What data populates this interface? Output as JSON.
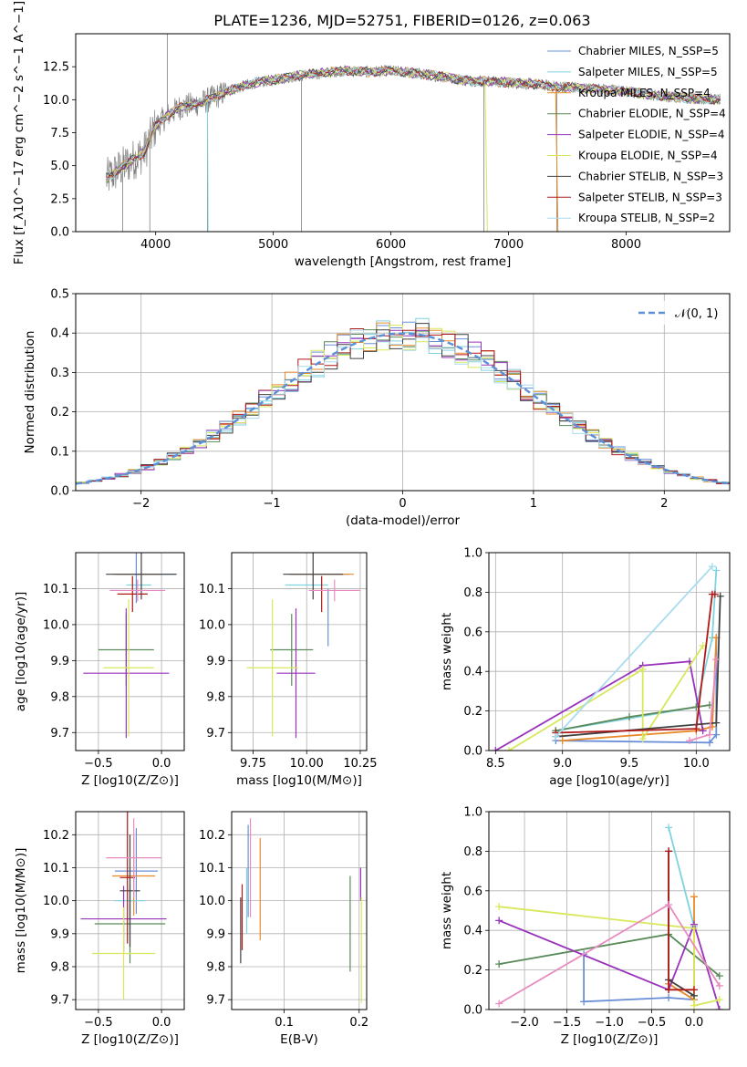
{
  "title": "PLATE=1236, MJD=52751, FIBERID=0126, z=0.063",
  "colors": {
    "Chabrier MILES": "#6a8fd8",
    "Salpeter MILES": "#7fd3e0",
    "Kroupa MILES": "#e88a2a",
    "Chabrier ELODIE": "#5a8a5a",
    "Salpeter ELODIE": "#9933bb",
    "Kroupa ELODIE": "#d8e85a",
    "Chabrier STELIB": "#404040",
    "Salpeter STELIB": "#b01818",
    "Kroupa STELIB": "#a8dcef",
    "Pink": "#e88cc0",
    "data": "#808080",
    "normal": "#5b8fd6"
  },
  "chart_data": [
    {
      "type": "line",
      "name": "spectrum",
      "title": "PLATE=1236, MJD=52751, FIBERID=0126, z=0.063",
      "xlabel": "wavelength [Angstrom, rest frame]",
      "ylabel": "Flux [f_λ10^−17 erg cm^−2 s^−1 A^−1]",
      "xlim": [
        3320,
        8880
      ],
      "ylim": [
        0,
        15
      ],
      "xticks": [
        "4000",
        "5000",
        "6000",
        "7000",
        "8000"
      ],
      "yticks": [
        "0.0",
        "2.5",
        "5.0",
        "7.5",
        "10.0",
        "12.5"
      ],
      "legend_position": "right",
      "legend": [
        "Chabrier MILES, N_SSP=5",
        "Salpeter MILES, N_SSP=5",
        "Kroupa MILES, N_SSP=4",
        "Chabrier ELODIE, N_SSP=4",
        "Salpeter ELODIE, N_SSP=4",
        "Kroupa ELODIE, N_SSP=4",
        "Chabrier STELIB, N_SSP=3",
        "Salpeter STELIB, N_SSP=3",
        "Kroupa STELIB, N_SSP=2"
      ],
      "continuum": {
        "x": [
          3580,
          3700,
          3800,
          3900,
          4000,
          4100,
          4200,
          4300,
          4400,
          4500,
          4600,
          4800,
          5000,
          5200,
          5400,
          5600,
          5800,
          6000,
          6200,
          6400,
          6600,
          6800,
          7000,
          7200,
          7400,
          7600,
          7800,
          8000,
          8200,
          8400,
          8600,
          8800
        ],
        "y": [
          4.0,
          4.8,
          5.4,
          6.0,
          8.0,
          8.8,
          9.4,
          9.6,
          9.8,
          10.2,
          10.6,
          11.2,
          11.5,
          11.8,
          12.0,
          12.2,
          12.1,
          12.2,
          12.0,
          11.8,
          11.5,
          11.4,
          11.3,
          11.2,
          11.0,
          10.9,
          10.8,
          10.6,
          10.4,
          10.2,
          10.1,
          10.0
        ]
      }
    },
    {
      "type": "bar",
      "name": "residual histogram",
      "xlabel": "(data-model)/error",
      "ylabel": "Normed distribution",
      "xlim": [
        -2.5,
        2.5
      ],
      "ylim": [
        0,
        0.5
      ],
      "xticks": [
        "−2",
        "−1",
        "0",
        "1",
        "2"
      ],
      "yticks": [
        "0.0",
        "0.1",
        "0.2",
        "0.3",
        "0.4",
        "0.5"
      ],
      "legend": [
        "𝒩(0, 1)"
      ],
      "bin_width": 0.1,
      "series_count": 9,
      "normal_curve": {
        "mean": 0,
        "sigma": 1
      }
    },
    {
      "type": "scatter",
      "name": "age vs metallicity",
      "xlabel": "Z [log10(Z/Z⊙)]",
      "ylabel": "age  [log10(age/yr)]",
      "xlim": [
        -0.68,
        0.18
      ],
      "ylim": [
        9.65,
        10.2
      ],
      "xticks": [
        "−0.5",
        "0.0"
      ],
      "yticks": [
        "9.7",
        "9.8",
        "9.9",
        "10.0",
        "10.1"
      ],
      "points": [
        {
          "x": -0.12,
          "xerr": 0.23,
          "y": 10.14,
          "yerr": 0.0,
          "color": "Chabrier MILES"
        },
        {
          "x": -0.18,
          "xerr": 0.1,
          "y": 10.11,
          "yerr": 0.0,
          "color": "Salpeter MILES"
        },
        {
          "x": -0.19,
          "xerr": 0.19,
          "y": 10.14,
          "yerr": 0.0,
          "color": "Kroupa MILES"
        },
        {
          "x": -0.2,
          "xerr": 0.02,
          "y": 10.14,
          "yerr": 0.08,
          "color": "Chabrier MILES"
        },
        {
          "x": -0.28,
          "xerr": 0.22,
          "y": 9.93,
          "yerr": 0.1,
          "color": "Chabrier ELODIE"
        },
        {
          "x": -0.28,
          "xerr": 0.34,
          "y": 9.865,
          "yerr": 0.18,
          "color": "Salpeter ELODIE"
        },
        {
          "x": -0.26,
          "xerr": 0.2,
          "y": 9.88,
          "yerr": 0.19,
          "color": "Kroupa ELODIE"
        },
        {
          "x": -0.16,
          "xerr": 0.28,
          "y": 10.14,
          "yerr": 0.07,
          "color": "Chabrier STELIB"
        },
        {
          "x": -0.23,
          "xerr": 0.12,
          "y": 10.085,
          "yerr": 0.05,
          "color": "Salpeter STELIB"
        },
        {
          "x": -0.19,
          "xerr": 0.22,
          "y": 10.095,
          "yerr": 0.03,
          "color": "Pink"
        }
      ]
    },
    {
      "type": "scatter",
      "name": "age vs mass",
      "xlabel": "mass [log10(M/M⊙)]",
      "ylabel": "",
      "xlim": [
        9.65,
        10.28
      ],
      "ylim": [
        9.65,
        10.2
      ],
      "xticks": [
        "9.75",
        "10.00",
        "10.25"
      ],
      "yticks": [
        "9.7",
        "9.8",
        "9.9",
        "10.0",
        "10.1"
      ],
      "points": [
        {
          "x": 10.06,
          "xerr": 0.14,
          "y": 10.14,
          "yerr": 0.0,
          "color": "Chabrier MILES"
        },
        {
          "x": 10.0,
          "xerr": 0.1,
          "y": 10.11,
          "yerr": 0.0,
          "color": "Salpeter MILES"
        },
        {
          "x": 10.08,
          "xerr": 0.14,
          "y": 10.14,
          "yerr": 0.0,
          "color": "Kroupa MILES"
        },
        {
          "x": 10.1,
          "xerr": 0.0,
          "y": 10.02,
          "yerr": 0.08,
          "color": "Chabrier MILES"
        },
        {
          "x": 9.93,
          "xerr": 0.1,
          "y": 9.93,
          "yerr": 0.1,
          "color": "Chabrier ELODIE"
        },
        {
          "x": 9.95,
          "xerr": 0.09,
          "y": 9.865,
          "yerr": 0.18,
          "color": "Salpeter ELODIE"
        },
        {
          "x": 9.84,
          "xerr": 0.12,
          "y": 9.88,
          "yerr": 0.19,
          "color": "Kroupa ELODIE"
        },
        {
          "x": 10.03,
          "xerr": 0.14,
          "y": 10.14,
          "yerr": 0.07,
          "color": "Chabrier STELIB"
        },
        {
          "x": 10.07,
          "xerr": 0.0,
          "y": 10.085,
          "yerr": 0.05,
          "color": "Salpeter STELIB"
        },
        {
          "x": 10.13,
          "xerr": 0.12,
          "y": 10.095,
          "yerr": 0.03,
          "color": "Pink"
        }
      ]
    },
    {
      "type": "line",
      "name": "mass weight vs age",
      "xlabel": "age  [log10(age/yr)]",
      "ylabel": "mass weight",
      "xlim": [
        8.45,
        10.25
      ],
      "ylim": [
        0,
        1
      ],
      "xticks": [
        "8.5",
        "9.0",
        "9.5",
        "10.0"
      ],
      "yticks": [
        "0.0",
        "0.2",
        "0.4",
        "0.6",
        "0.8",
        "1.0"
      ],
      "series": [
        {
          "color": "Chabrier MILES",
          "x": [
            8.95,
            10.1,
            10.15,
            10.15
          ],
          "y": [
            0.05,
            0.04,
            0.08,
            0.57
          ]
        },
        {
          "color": "Salpeter MILES",
          "x": [
            8.95,
            10.0,
            10.12,
            10.15
          ],
          "y": [
            0.1,
            0.22,
            0.57,
            0.91
          ]
        },
        {
          "color": "Kroupa MILES",
          "x": [
            9.0,
            10.0,
            10.12,
            10.15
          ],
          "y": [
            0.05,
            0.1,
            0.12,
            0.57
          ]
        },
        {
          "color": "Chabrier ELODIE",
          "x": [
            8.95,
            9.5,
            10.0,
            10.1
          ],
          "y": [
            0.1,
            0.17,
            0.22,
            0.23
          ]
        },
        {
          "color": "Salpeter ELODIE",
          "x": [
            8.5,
            9.6,
            9.95,
            10.05
          ],
          "y": [
            0.0,
            0.43,
            0.45,
            0.1
          ]
        },
        {
          "color": "Kroupa ELODIE",
          "x": [
            8.6,
            9.6,
            9.6,
            10.05
          ],
          "y": [
            0.0,
            0.41,
            0.06,
            0.53
          ]
        },
        {
          "color": "Chabrier STELIB",
          "x": [
            8.95,
            10.15,
            10.18
          ],
          "y": [
            0.07,
            0.14,
            0.78
          ]
        },
        {
          "color": "Salpeter STELIB",
          "x": [
            8.95,
            10.0,
            10.12,
            10.14
          ],
          "y": [
            0.09,
            0.11,
            0.79,
            0.79
          ]
        },
        {
          "color": "Kroupa STELIB",
          "x": [
            8.95,
            10.12
          ],
          "y": [
            0.07,
            0.93
          ]
        },
        {
          "color": "Pink",
          "x": [
            9.95,
            10.1,
            10.15
          ],
          "y": [
            0.05,
            0.08,
            0.46
          ]
        }
      ]
    },
    {
      "type": "scatter",
      "name": "mass vs metallicity",
      "xlabel": "Z [log10(Z/Z⊙)]",
      "ylabel": "mass [log10(M/M⊙)]",
      "xlim": [
        -0.68,
        0.18
      ],
      "ylim": [
        9.67,
        10.27
      ],
      "xticks": [
        "−0.5",
        "0.0"
      ],
      "yticks": [
        "9.7",
        "9.8",
        "9.9",
        "10.0",
        "10.1",
        "10.2"
      ],
      "points": [
        {
          "x": -0.2,
          "xerr": 0.17,
          "y": 10.09,
          "yerr": 0.13,
          "color": "Chabrier MILES"
        },
        {
          "x": -0.25,
          "xerr": 0.12,
          "y": 10.0,
          "yerr": 0.1,
          "color": "Salpeter MILES"
        },
        {
          "x": -0.22,
          "xerr": 0.17,
          "y": 10.075,
          "yerr": 0.12,
          "color": "Kroupa MILES"
        },
        {
          "x": -0.25,
          "xerr": 0.28,
          "y": 9.93,
          "yerr": 0.12,
          "color": "Chabrier ELODIE"
        },
        {
          "x": -0.3,
          "xerr": 0.34,
          "y": 9.945,
          "yerr": 0.1,
          "color": "Salpeter ELODIE"
        },
        {
          "x": -0.3,
          "xerr": 0.25,
          "y": 9.84,
          "yerr": 0.14,
          "color": "Kroupa ELODIE"
        },
        {
          "x": -0.25,
          "xerr": 0.08,
          "y": 10.03,
          "yerr": 0.17,
          "color": "Chabrier STELIB"
        },
        {
          "x": -0.27,
          "xerr": 0.06,
          "y": 10.07,
          "yerr": 0.2,
          "color": "Salpeter STELIB"
        },
        {
          "x": -0.22,
          "xerr": 0.22,
          "y": 10.13,
          "yerr": 0.12,
          "color": "Pink"
        }
      ]
    },
    {
      "type": "scatter",
      "name": "mass vs extinction",
      "xlabel": "E(B-V)",
      "ylabel": "",
      "xlim": [
        0.03,
        0.21
      ],
      "ylim": [
        9.67,
        10.27
      ],
      "xticks": [
        "0.1",
        "0.2"
      ],
      "yticks": [
        "9.7",
        "9.8",
        "9.9",
        "10.0",
        "10.1",
        "10.2"
      ],
      "points": [
        {
          "x": 0.052,
          "y": 10.09,
          "yerr": 0.14,
          "color": "Chabrier MILES"
        },
        {
          "x": 0.05,
          "y": 10.0,
          "yerr": 0.1,
          "color": "Salpeter MILES"
        },
        {
          "x": 0.068,
          "y": 10.035,
          "yerr": 0.155,
          "color": "Kroupa MILES"
        },
        {
          "x": 0.188,
          "y": 9.93,
          "yerr": 0.145,
          "color": "Chabrier ELODIE"
        },
        {
          "x": 0.202,
          "y": 10.05,
          "yerr": 0.05,
          "color": "Salpeter ELODIE"
        },
        {
          "x": 0.203,
          "y": 9.85,
          "yerr": 0.16,
          "color": "Kroupa ELODIE"
        },
        {
          "x": 0.042,
          "y": 9.91,
          "yerr": 0.1,
          "color": "Chabrier STELIB"
        },
        {
          "x": 0.044,
          "y": 9.95,
          "yerr": 0.1,
          "color": "Salpeter STELIB"
        },
        {
          "x": 0.055,
          "y": 10.1,
          "yerr": 0.15,
          "color": "Pink"
        }
      ]
    },
    {
      "type": "line",
      "name": "mass weight vs metallicity",
      "xlabel": "Z [log10(Z/Z⊙)]",
      "ylabel": "mass weight",
      "xlim": [
        -2.42,
        0.42
      ],
      "ylim": [
        0,
        1
      ],
      "xticks": [
        "−2.0",
        "−1.5",
        "−1.0",
        "−0.5",
        "0.0"
      ],
      "yticks": [
        "0.0",
        "0.2",
        "0.4",
        "0.6",
        "0.8",
        "1.0"
      ],
      "series": [
        {
          "color": "Chabrier MILES",
          "x": [
            -1.3,
            -1.3,
            -0.3,
            0.0
          ],
          "y": [
            0.28,
            0.04,
            0.06,
            0.05
          ]
        },
        {
          "color": "Salpeter MILES",
          "x": [
            -0.3,
            0.0
          ],
          "y": [
            0.92,
            0.42
          ]
        },
        {
          "color": "Kroupa MILES",
          "x": [
            -0.3,
            0.0,
            0.0
          ],
          "y": [
            0.13,
            0.05,
            0.57
          ]
        },
        {
          "color": "Chabrier ELODIE",
          "x": [
            -2.3,
            -0.3,
            0.3
          ],
          "y": [
            0.23,
            0.38,
            0.17
          ]
        },
        {
          "color": "Salpeter ELODIE",
          "x": [
            -2.3,
            -0.3,
            0.0,
            0.3
          ],
          "y": [
            0.45,
            0.1,
            0.43,
            0.0
          ]
        },
        {
          "color": "Kroupa ELODIE",
          "x": [
            -2.3,
            0.0,
            0.0,
            0.3
          ],
          "y": [
            0.52,
            0.41,
            0.02,
            0.05
          ]
        },
        {
          "color": "Chabrier STELIB",
          "x": [
            -0.3,
            -0.3,
            0.0
          ],
          "y": [
            0.8,
            0.15,
            0.07
          ]
        },
        {
          "color": "Salpeter STELIB",
          "x": [
            -0.3,
            -0.3,
            0.0
          ],
          "y": [
            0.8,
            0.1,
            0.1
          ]
        },
        {
          "color": "Pink",
          "x": [
            -2.3,
            -0.3,
            0.3
          ],
          "y": [
            0.03,
            0.53,
            0.12
          ]
        }
      ]
    }
  ]
}
